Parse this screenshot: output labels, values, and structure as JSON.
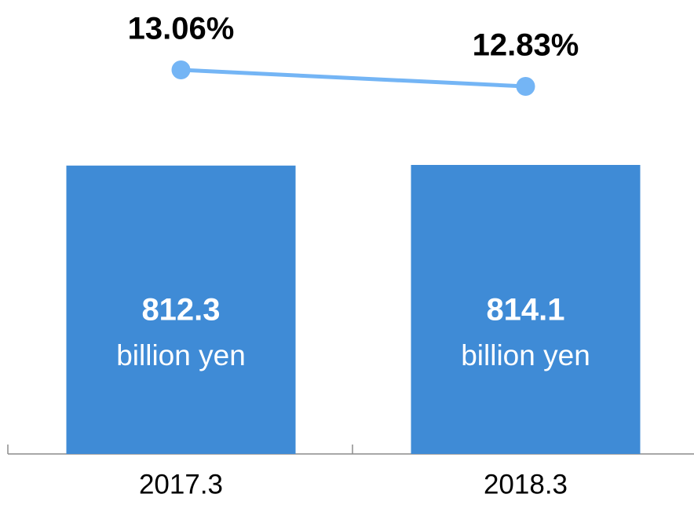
{
  "chart_data": {
    "type": "bar",
    "categories": [
      "2017.3",
      "2018.3"
    ],
    "series": [
      {
        "type": "bar",
        "color": "#3f8bd6",
        "values": [
          812.3,
          814.1
        ],
        "unit": "billion yen"
      },
      {
        "type": "line",
        "color": "#74b5f5",
        "values": [
          13.06,
          12.83
        ],
        "value_labels": [
          "13.06%",
          "12.83%"
        ],
        "axis": "y2"
      }
    ]
  }
}
